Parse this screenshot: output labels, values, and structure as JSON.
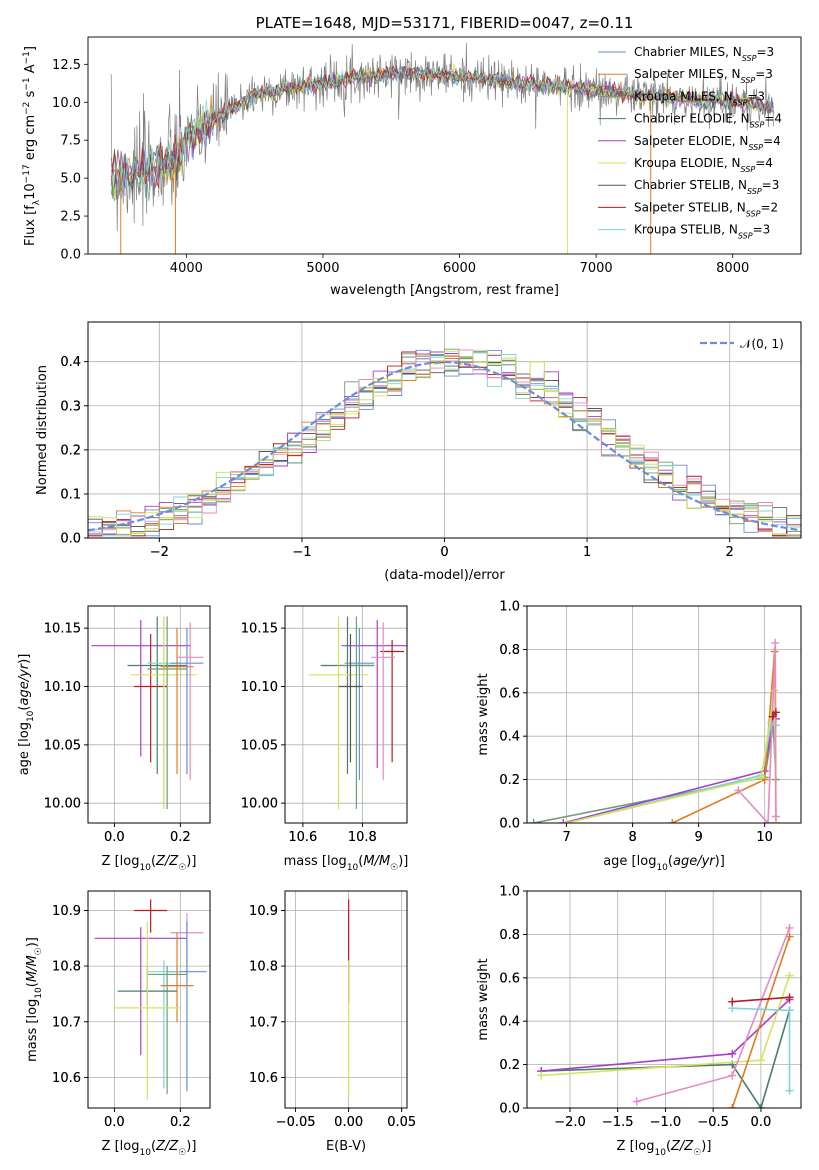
{
  "colors": {
    "Chabrier MILES": "#6a8ed8",
    "Salpeter MILES": "#e07b22",
    "Kroupa MILES": "#6e9e74",
    "Chabrier ELODIE": "#4a7d6b",
    "Salpeter ELODIE": "#a83fc8",
    "Kroupa ELODIE": "#d7e25c",
    "Chabrier STELIB": "#555555",
    "Salpeter STELIB": "#b51f1f",
    "Kroupa STELIB": "#7fd3dc",
    "Pink": "#e58ac4",
    "Olive": "#c8da5a",
    "normal_curve": "#6a8ed8"
  },
  "chart_data": [
    {
      "id": "spectrum",
      "type": "line",
      "title": "PLATE=1648, MJD=53171, FIBERID=0047, z=0.11",
      "xlabel": "wavelength [Angstrom, rest frame]",
      "ylabel": "Flux [f_λ10^-17 erg cm^-2 s^-1 A^-1]",
      "xlim": [
        3280,
        8500
      ],
      "ylim": [
        0,
        14.3
      ],
      "xticks": [
        "4000",
        "5000",
        "6000",
        "7000",
        "8000"
      ],
      "yticks": [
        "0.0",
        "2.5",
        "5.0",
        "7.5",
        "10.0",
        "12.5"
      ],
      "legend": "upper right",
      "legend_entries": [
        {
          "text": "Chabrier MILES, N",
          "sub": "SSP",
          "tail": "=3",
          "color": "#6a8ed8"
        },
        {
          "text": "Salpeter MILES, N",
          "sub": "SSP",
          "tail": "=3",
          "color": "#e07b22"
        },
        {
          "text": "Kroupa MILES, N",
          "sub": "SSP",
          "tail": "=3",
          "color": "#6e9e74"
        },
        {
          "text": "Chabrier ELODIE, N",
          "sub": "SSP",
          "tail": "=4",
          "color": "#4a7d6b"
        },
        {
          "text": "Salpeter ELODIE, N",
          "sub": "SSP",
          "tail": "=4",
          "color": "#a83fc8"
        },
        {
          "text": "Kroupa ELODIE, N",
          "sub": "SSP",
          "tail": "=4",
          "color": "#d7e25c"
        },
        {
          "text": "Chabrier STELIB, N",
          "sub": "SSP",
          "tail": "=3",
          "color": "#555555"
        },
        {
          "text": "Salpeter STELIB, N",
          "sub": "SSP",
          "tail": "=2",
          "color": "#b51f1f"
        },
        {
          "text": "Kroupa STELIB, N",
          "sub": "SSP",
          "tail": "=3",
          "color": "#7fd3dc"
        }
      ],
      "continuum": [
        [
          3450,
          5.0
        ],
        [
          3600,
          5.3
        ],
        [
          3800,
          5.7
        ],
        [
          3950,
          6.3
        ],
        [
          4000,
          7.4
        ],
        [
          4200,
          8.8
        ],
        [
          4500,
          10.5
        ],
        [
          4800,
          11.0
        ],
        [
          5200,
          11.6
        ],
        [
          5600,
          12.0
        ],
        [
          6000,
          11.7
        ],
        [
          6400,
          11.3
        ],
        [
          6800,
          11.0
        ],
        [
          7200,
          10.6
        ],
        [
          7600,
          10.2
        ],
        [
          8000,
          10.1
        ],
        [
          8300,
          9.6
        ]
      ],
      "drops": [
        {
          "x": 3520,
          "to": 0.0,
          "color": "#e07b22"
        },
        {
          "x": 3920,
          "to": 0.0,
          "color": "#e07b22"
        },
        {
          "x": 6790,
          "to": 0.0,
          "color": "#d7e25c"
        },
        {
          "x": 7400,
          "to": 0.0,
          "color": "#e07b22"
        }
      ]
    },
    {
      "id": "residuals",
      "type": "histogram",
      "xlabel": "(data-model)/error",
      "ylabel": "Normed distribution",
      "xlim": [
        -2.5,
        2.5
      ],
      "ylim": [
        0,
        0.49
      ],
      "xticks": [
        "−2",
        "−1",
        "0",
        "1",
        "2"
      ],
      "yticks": [
        "0.0",
        "0.1",
        "0.2",
        "0.3",
        "0.4"
      ],
      "legend": {
        "label": "𝒩(0, 1)",
        "placement": "upper right"
      },
      "bin_width": 0.1,
      "grid": true
    },
    {
      "id": "age_vs_Z",
      "type": "errorbar",
      "xlabel": "Z [log10(Z/Z☉)]",
      "ylabel": "age [log10(age/yr)]",
      "xlim": [
        -0.08,
        0.29
      ],
      "ylim": [
        9.983,
        10.169
      ],
      "xticks": [
        "0.0",
        "0.2"
      ],
      "yticks": [
        "10.00",
        "10.05",
        "10.10",
        "10.15"
      ],
      "points": [
        {
          "x": 0.08,
          "y": 10.135,
          "xerr": 0.15,
          "ylo": 10.04,
          "yhi": 10.157,
          "color": "#a83fc8"
        },
        {
          "x": 0.11,
          "y": 10.1,
          "xerr": 0.05,
          "ylo": 10.035,
          "yhi": 10.145,
          "color": "#b51f1f"
        },
        {
          "x": 0.13,
          "y": 10.118,
          "xerr": 0.09,
          "ylo": 10.025,
          "yhi": 10.16,
          "color": "#4a7d6b"
        },
        {
          "x": 0.15,
          "y": 10.12,
          "xerr": 0.05,
          "ylo": 9.995,
          "yhi": 10.16,
          "color": "#7fd3dc"
        },
        {
          "x": 0.15,
          "y": 10.11,
          "xerr": 0.1,
          "ylo": 9.995,
          "yhi": 10.16,
          "color": "#d7e25c"
        },
        {
          "x": 0.16,
          "y": 10.115,
          "xerr": 0.06,
          "ylo": 9.995,
          "yhi": 10.16,
          "color": "#6e9e74"
        },
        {
          "x": 0.19,
          "y": 10.117,
          "xerr": 0.05,
          "ylo": 10.025,
          "yhi": 10.15,
          "color": "#e07b22"
        },
        {
          "x": 0.22,
          "y": 10.12,
          "xerr": 0.05,
          "ylo": 10.025,
          "yhi": 10.15,
          "color": "#6a8ed8"
        },
        {
          "x": 0.23,
          "y": 10.125,
          "xerr": 0.04,
          "ylo": 10.02,
          "yhi": 10.155,
          "color": "#e58ac4"
        }
      ]
    },
    {
      "id": "age_vs_mass",
      "type": "errorbar",
      "xlabel": "mass [log10(M/M☉)]",
      "ylabel": "",
      "xlim": [
        10.54,
        10.95
      ],
      "ylim": [
        9.983,
        10.169
      ],
      "xticks": [
        "10.6",
        "10.8"
      ],
      "yticks": [
        "10.00",
        "10.05",
        "10.10",
        "10.15"
      ],
      "points": [
        {
          "x": 10.85,
          "y": 10.135,
          "xerr": 0.12,
          "ylo": 10.03,
          "yhi": 10.157,
          "color": "#a83fc8"
        },
        {
          "x": 10.9,
          "y": 10.13,
          "xerr": 0.04,
          "ylo": 10.035,
          "yhi": 10.14,
          "color": "#b51f1f"
        },
        {
          "x": 10.75,
          "y": 10.118,
          "xerr": 0.09,
          "ylo": 10.025,
          "yhi": 10.16,
          "color": "#4a7d6b"
        },
        {
          "x": 10.72,
          "y": 10.11,
          "xerr": 0.1,
          "ylo": 9.995,
          "yhi": 10.16,
          "color": "#d7e25c"
        },
        {
          "x": 10.78,
          "y": 10.118,
          "xerr": 0.06,
          "ylo": 9.995,
          "yhi": 10.16,
          "color": "#6e9e74"
        },
        {
          "x": 10.79,
          "y": 10.12,
          "xerr": 0.05,
          "ylo": 10.02,
          "yhi": 10.15,
          "color": "#6a8ed8"
        },
        {
          "x": 10.76,
          "y": 10.1,
          "xerr": 0.04,
          "ylo": 10.035,
          "yhi": 10.145,
          "color": "#555555"
        },
        {
          "x": 10.87,
          "y": 10.125,
          "xerr": 0.04,
          "ylo": 10.02,
          "yhi": 10.155,
          "color": "#e58ac4"
        }
      ]
    },
    {
      "id": "weight_vs_age",
      "type": "line",
      "xlabel": "age [log10(age/yr)]",
      "ylabel": "mass weight",
      "xlim": [
        6.4,
        10.55
      ],
      "ylim": [
        0,
        1.0
      ],
      "xticks": [
        "7",
        "8",
        "9",
        "10"
      ],
      "yticks": [
        "0.0",
        "0.2",
        "0.4",
        "0.6",
        "0.8",
        "1.0"
      ],
      "series": [
        {
          "color": "#6e9e74",
          "points": [
            [
              6.5,
              0.0
            ],
            [
              10.0,
              0.21
            ],
            [
              10.13,
              0.45
            ],
            [
              10.17,
              0.2
            ]
          ]
        },
        {
          "color": "#a83fc8",
          "points": [
            [
              6.95,
              0.0
            ],
            [
              10.0,
              0.24
            ],
            [
              10.13,
              0.5
            ],
            [
              10.17,
              0.48
            ]
          ]
        },
        {
          "color": "#e07b22",
          "points": [
            [
              8.6,
              0.0
            ],
            [
              10.0,
              0.2
            ],
            [
              10.15,
              0.79
            ],
            [
              10.17,
              0.0
            ]
          ]
        },
        {
          "color": "#7fd3dc",
          "points": [
            [
              7.0,
              0.0
            ],
            [
              9.95,
              0.22
            ],
            [
              10.1,
              0.46
            ],
            [
              10.17,
              0.45
            ]
          ]
        },
        {
          "color": "#d7e25c",
          "points": [
            [
              7.0,
              0.0
            ],
            [
              9.95,
              0.21
            ],
            [
              10.15,
              0.61
            ],
            [
              10.17,
              0.0
            ]
          ]
        },
        {
          "color": "#e58ac4",
          "points": [
            [
              9.6,
              0.15
            ],
            [
              10.05,
              0.0
            ],
            [
              10.16,
              0.83
            ],
            [
              10.17,
              0.03
            ]
          ]
        },
        {
          "color": "#b51f1f",
          "points": [
            [
              10.12,
              0.49
            ],
            [
              10.17,
              0.51
            ]
          ]
        }
      ]
    },
    {
      "id": "mass_vs_Z",
      "type": "errorbar",
      "xlabel": "Z [log10(Z/Z☉)]",
      "ylabel": "mass [log10(M/M☉)]",
      "xlim": [
        -0.08,
        0.29
      ],
      "ylim": [
        10.545,
        10.935
      ],
      "xticks": [
        "0.0",
        "0.2"
      ],
      "yticks": [
        "10.6",
        "10.7",
        "10.8",
        "10.9"
      ],
      "points": [
        {
          "x": 0.11,
          "y": 10.9,
          "xerr": 0.05,
          "ylo": 10.86,
          "yhi": 10.92,
          "color": "#b51f1f"
        },
        {
          "x": 0.22,
          "y": 10.86,
          "xerr": 0.05,
          "ylo": 10.78,
          "yhi": 10.895,
          "color": "#e58ac4"
        },
        {
          "x": 0.08,
          "y": 10.85,
          "xerr": 0.14,
          "ylo": 10.64,
          "yhi": 10.87,
          "color": "#a83fc8"
        },
        {
          "x": 0.22,
          "y": 10.79,
          "xerr": 0.06,
          "ylo": 10.575,
          "yhi": 10.88,
          "color": "#6a8ed8"
        },
        {
          "x": 0.15,
          "y": 10.79,
          "xerr": 0.05,
          "ylo": 10.58,
          "yhi": 10.81,
          "color": "#7fd3dc"
        },
        {
          "x": 0.16,
          "y": 10.785,
          "xerr": 0.06,
          "ylo": 10.57,
          "yhi": 10.8,
          "color": "#6e9e74"
        },
        {
          "x": 0.19,
          "y": 10.765,
          "xerr": 0.05,
          "ylo": 10.7,
          "yhi": 10.86,
          "color": "#e07b22"
        },
        {
          "x": 0.1,
          "y": 10.755,
          "xerr": 0.09,
          "ylo": 10.73,
          "yhi": 10.8,
          "color": "#4a7d6b"
        },
        {
          "x": 0.1,
          "y": 10.725,
          "xerr": 0.1,
          "ylo": 10.56,
          "yhi": 10.88,
          "color": "#d7e25c"
        }
      ]
    },
    {
      "id": "mass_vs_ebv",
      "type": "errorbar",
      "xlabel": "E(B-V)",
      "ylabel": "",
      "xlim": [
        -0.06,
        0.055
      ],
      "ylim": [
        10.545,
        10.935
      ],
      "xticks": [
        "−0.05",
        "0.00",
        "0.05"
      ],
      "yticks": [
        "10.6",
        "10.7",
        "10.8",
        "10.9"
      ],
      "points": [
        {
          "x": 0.0,
          "y": 10.9,
          "xerr": 0,
          "ylo": 10.735,
          "yhi": 10.92,
          "color": "#b51f1f"
        },
        {
          "x": 0.0,
          "y": 10.76,
          "xerr": 0,
          "ylo": 10.565,
          "yhi": 10.81,
          "color": "#d7e25c"
        }
      ]
    },
    {
      "id": "weight_vs_Z",
      "type": "line",
      "xlabel": "Z [log10(Z/Z☉)]",
      "ylabel": "mass weight",
      "xlim": [
        -2.45,
        0.42
      ],
      "ylim": [
        0,
        1.0
      ],
      "xticks": [
        "−2.0",
        "−1.5",
        "−1.0",
        "−0.5",
        "0.0"
      ],
      "yticks": [
        "0.0",
        "0.2",
        "0.4",
        "0.6",
        "0.8",
        "1.0"
      ],
      "series": [
        {
          "color": "#4a7d6b",
          "points": [
            [
              -2.3,
              0.17
            ],
            [
              -0.3,
              0.2
            ],
            [
              0.0,
              0.0
            ],
            [
              0.3,
              0.45
            ]
          ]
        },
        {
          "color": "#a83fc8",
          "points": [
            [
              -2.3,
              0.17
            ],
            [
              -0.3,
              0.25
            ],
            [
              0.3,
              0.5
            ]
          ]
        },
        {
          "color": "#d7e25c",
          "points": [
            [
              -2.3,
              0.15
            ],
            [
              0.0,
              0.22
            ],
            [
              0.3,
              0.61
            ]
          ]
        },
        {
          "color": "#e07b22",
          "points": [
            [
              -0.3,
              0.0
            ],
            [
              0.3,
              0.79
            ]
          ]
        },
        {
          "color": "#e58ac4",
          "points": [
            [
              -1.3,
              0.03
            ],
            [
              -0.3,
              0.15
            ],
            [
              0.3,
              0.83
            ]
          ]
        },
        {
          "color": "#7fd3dc",
          "points": [
            [
              -0.3,
              0.46
            ],
            [
              0.3,
              0.45
            ],
            [
              0.3,
              0.08
            ]
          ]
        },
        {
          "color": "#b51f1f",
          "points": [
            [
              -0.3,
              0.49
            ],
            [
              0.3,
              0.51
            ]
          ]
        }
      ]
    }
  ]
}
